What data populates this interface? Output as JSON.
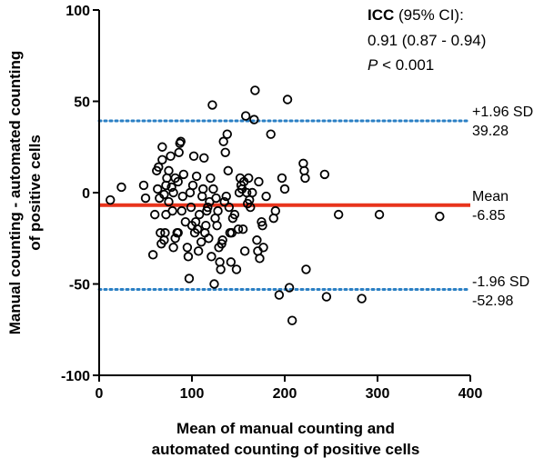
{
  "chart_data": {
    "type": "scatter",
    "title": "",
    "xlabel": [
      "Mean of manual counting and",
      "automated counting of positive cells"
    ],
    "ylabel": [
      "Manual counting - automated counting",
      "of positive cells"
    ],
    "xlim": [
      0,
      400
    ],
    "ylim": [
      -100,
      100
    ],
    "xticks": [
      "0",
      "100",
      "200",
      "300",
      "400"
    ],
    "yticks": [
      "100",
      "50",
      "0",
      "-50",
      "-100"
    ],
    "xtick_values": [
      0,
      100,
      200,
      300,
      400
    ],
    "ytick_values": [
      100,
      50,
      0,
      -50,
      -100
    ],
    "grid": false,
    "colors": {
      "points": "#000000",
      "mean_line": "#e8341c",
      "limit_lines": "#2a7fc4"
    },
    "reference_lines": [
      {
        "name": "upper",
        "y": 39.28,
        "style": "dotted",
        "color": "#2a7fc4",
        "label": "+1.96 SD",
        "value_label": "39.28"
      },
      {
        "name": "mean",
        "y": -6.85,
        "style": "solid",
        "color": "#e8341c",
        "label": "Mean",
        "value_label": "-6.85"
      },
      {
        "name": "lower",
        "y": -52.98,
        "style": "dotted",
        "color": "#2a7fc4",
        "label": "-1.96 SD",
        "value_label": "-52.98"
      }
    ],
    "icc": {
      "bold": "ICC",
      "rest": " (95% CI):",
      "line2": "0.91 (0.87 - 0.94)",
      "p_italic": "P",
      "p_rest": " < 0.001"
    },
    "points": [
      [
        12,
        -4
      ],
      [
        24,
        3
      ],
      [
        48,
        4
      ],
      [
        50,
        -3
      ],
      [
        58,
        -34
      ],
      [
        60,
        -12
      ],
      [
        62,
        12
      ],
      [
        63,
        2
      ],
      [
        64,
        14
      ],
      [
        65,
        -3
      ],
      [
        66,
        -22
      ],
      [
        67,
        -28
      ],
      [
        68,
        18
      ],
      [
        68,
        25
      ],
      [
        70,
        -1
      ],
      [
        70,
        -26
      ],
      [
        71,
        -22
      ],
      [
        72,
        4
      ],
      [
        72,
        -12
      ],
      [
        73,
        8
      ],
      [
        75,
        12
      ],
      [
        75,
        -5
      ],
      [
        77,
        20
      ],
      [
        78,
        3
      ],
      [
        79,
        -10
      ],
      [
        80,
        0
      ],
      [
        80,
        -30
      ],
      [
        82,
        8
      ],
      [
        82,
        -25
      ],
      [
        84,
        -22
      ],
      [
        85,
        6
      ],
      [
        85,
        -22
      ],
      [
        86,
        22
      ],
      [
        87,
        27
      ],
      [
        88,
        28
      ],
      [
        89,
        -10
      ],
      [
        90,
        -2
      ],
      [
        91,
        10
      ],
      [
        93,
        -16
      ],
      [
        95,
        -30
      ],
      [
        96,
        -35
      ],
      [
        97,
        -47
      ],
      [
        98,
        0
      ],
      [
        99,
        -8
      ],
      [
        100,
        -18
      ],
      [
        101,
        4
      ],
      [
        102,
        20
      ],
      [
        103,
        -22
      ],
      [
        104,
        -16
      ],
      [
        105,
        9
      ],
      [
        106,
        -20
      ],
      [
        107,
        -32
      ],
      [
        108,
        -12
      ],
      [
        110,
        -27
      ],
      [
        111,
        -2
      ],
      [
        112,
        2
      ],
      [
        113,
        19
      ],
      [
        114,
        -22
      ],
      [
        115,
        -18
      ],
      [
        116,
        -10
      ],
      [
        117,
        -8
      ],
      [
        118,
        -25
      ],
      [
        119,
        -5
      ],
      [
        120,
        8
      ],
      [
        121,
        -35
      ],
      [
        122,
        48
      ],
      [
        123,
        2
      ],
      [
        124,
        -50
      ],
      [
        125,
        -14
      ],
      [
        126,
        -3
      ],
      [
        127,
        -18
      ],
      [
        128,
        -10
      ],
      [
        129,
        -30
      ],
      [
        130,
        -38
      ],
      [
        131,
        -42
      ],
      [
        132,
        -28
      ],
      [
        133,
        -26
      ],
      [
        134,
        28
      ],
      [
        135,
        -5
      ],
      [
        136,
        22
      ],
      [
        137,
        -2
      ],
      [
        138,
        32
      ],
      [
        139,
        12
      ],
      [
        140,
        -8
      ],
      [
        141,
        -22
      ],
      [
        142,
        -38
      ],
      [
        143,
        -22
      ],
      [
        144,
        -14
      ],
      [
        146,
        -12
      ],
      [
        148,
        -42
      ],
      [
        150,
        -20
      ],
      [
        151,
        0
      ],
      [
        152,
        8
      ],
      [
        153,
        4
      ],
      [
        154,
        2
      ],
      [
        155,
        -20
      ],
      [
        156,
        6
      ],
      [
        157,
        -32
      ],
      [
        158,
        42
      ],
      [
        159,
        0
      ],
      [
        160,
        -6
      ],
      [
        161,
        8
      ],
      [
        162,
        -4
      ],
      [
        163,
        -8
      ],
      [
        165,
        0
      ],
      [
        167,
        40
      ],
      [
        168,
        56
      ],
      [
        170,
        -26
      ],
      [
        171,
        -32
      ],
      [
        172,
        6
      ],
      [
        173,
        -36
      ],
      [
        175,
        -16
      ],
      [
        176,
        -18
      ],
      [
        177,
        -30
      ],
      [
        180,
        -2
      ],
      [
        185,
        32
      ],
      [
        188,
        -14
      ],
      [
        190,
        -10
      ],
      [
        194,
        -56
      ],
      [
        197,
        8
      ],
      [
        200,
        2
      ],
      [
        203,
        51
      ],
      [
        205,
        -52
      ],
      [
        208,
        -70
      ],
      [
        220,
        16
      ],
      [
        221,
        12
      ],
      [
        222,
        8
      ],
      [
        223,
        -42
      ],
      [
        243,
        10
      ],
      [
        245,
        -57
      ],
      [
        258,
        -12
      ],
      [
        283,
        -58
      ],
      [
        302,
        -12
      ],
      [
        367,
        -13
      ]
    ]
  }
}
